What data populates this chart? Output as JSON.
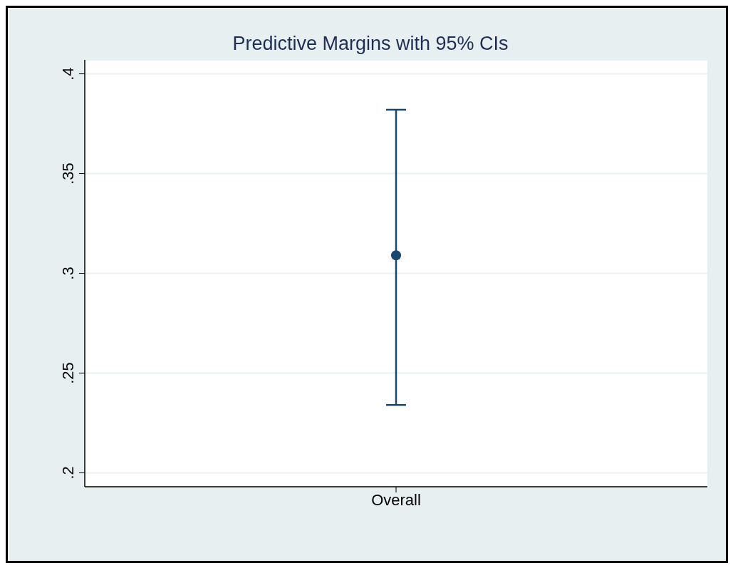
{
  "chart_data": {
    "type": "scatter",
    "title": "Predictive Margins with 95% CIs",
    "categories": [
      "Overall"
    ],
    "values": [
      0.309
    ],
    "errors": [
      [
        0.234,
        0.382
      ]
    ],
    "color": "#1a476f",
    "marker": "circle",
    "grid": "y",
    "ylim": [
      0.193,
      0.407
    ],
    "yticks": [
      {
        "value": 0.2,
        "label": ".2"
      },
      {
        "value": 0.25,
        "label": ".25"
      },
      {
        "value": 0.3,
        "label": ".3"
      },
      {
        "value": 0.35,
        "label": ".35"
      },
      {
        "value": 0.4,
        "label": ".4"
      }
    ]
  }
}
